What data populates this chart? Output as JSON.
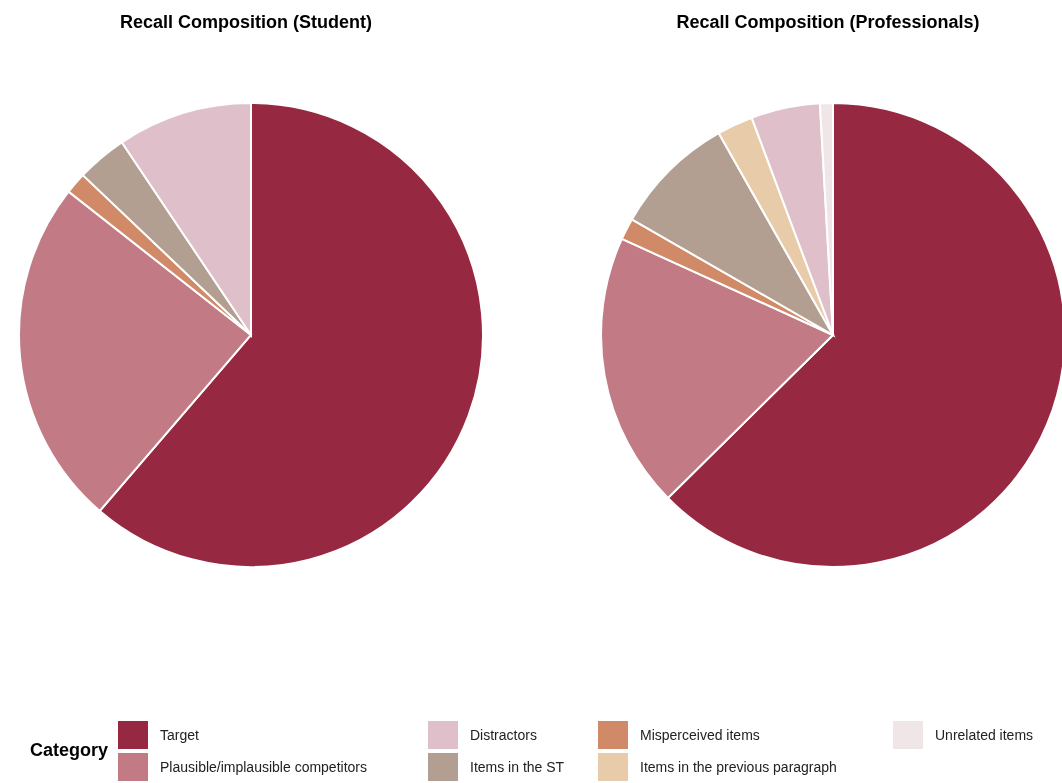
{
  "chart_data": [
    {
      "type": "pie",
      "title": "Recall Composition (Student)",
      "categories": [
        null,
        null,
        null,
        null,
        null
      ],
      "values": [
        61.3,
        24.3,
        1.5,
        3.5,
        9.4
      ],
      "colors": [
        "#962841",
        "#c27b85",
        "#d08a68",
        "#b29f91",
        "#dfc0ca"
      ]
    },
    {
      "type": "pie",
      "title": "Recall Composition (Professionals)",
      "categories": [
        "Target",
        "Plausible/implausible competitors",
        "Misperceived items",
        "Items in the ST",
        "Items in the previous paragraph",
        "Distractors",
        "Unrelated items"
      ],
      "values": [
        62.6,
        19.2,
        1.5,
        8.5,
        2.5,
        4.8,
        0.9
      ],
      "colors": [
        "#962841",
        "#c27b85",
        "#d08a68",
        "#b29f91",
        "#e8cba8",
        "#dfc0ca",
        "#f0e6e7"
      ],
      "legend": "bottom",
      "legend_title": "Category"
    }
  ]
}
